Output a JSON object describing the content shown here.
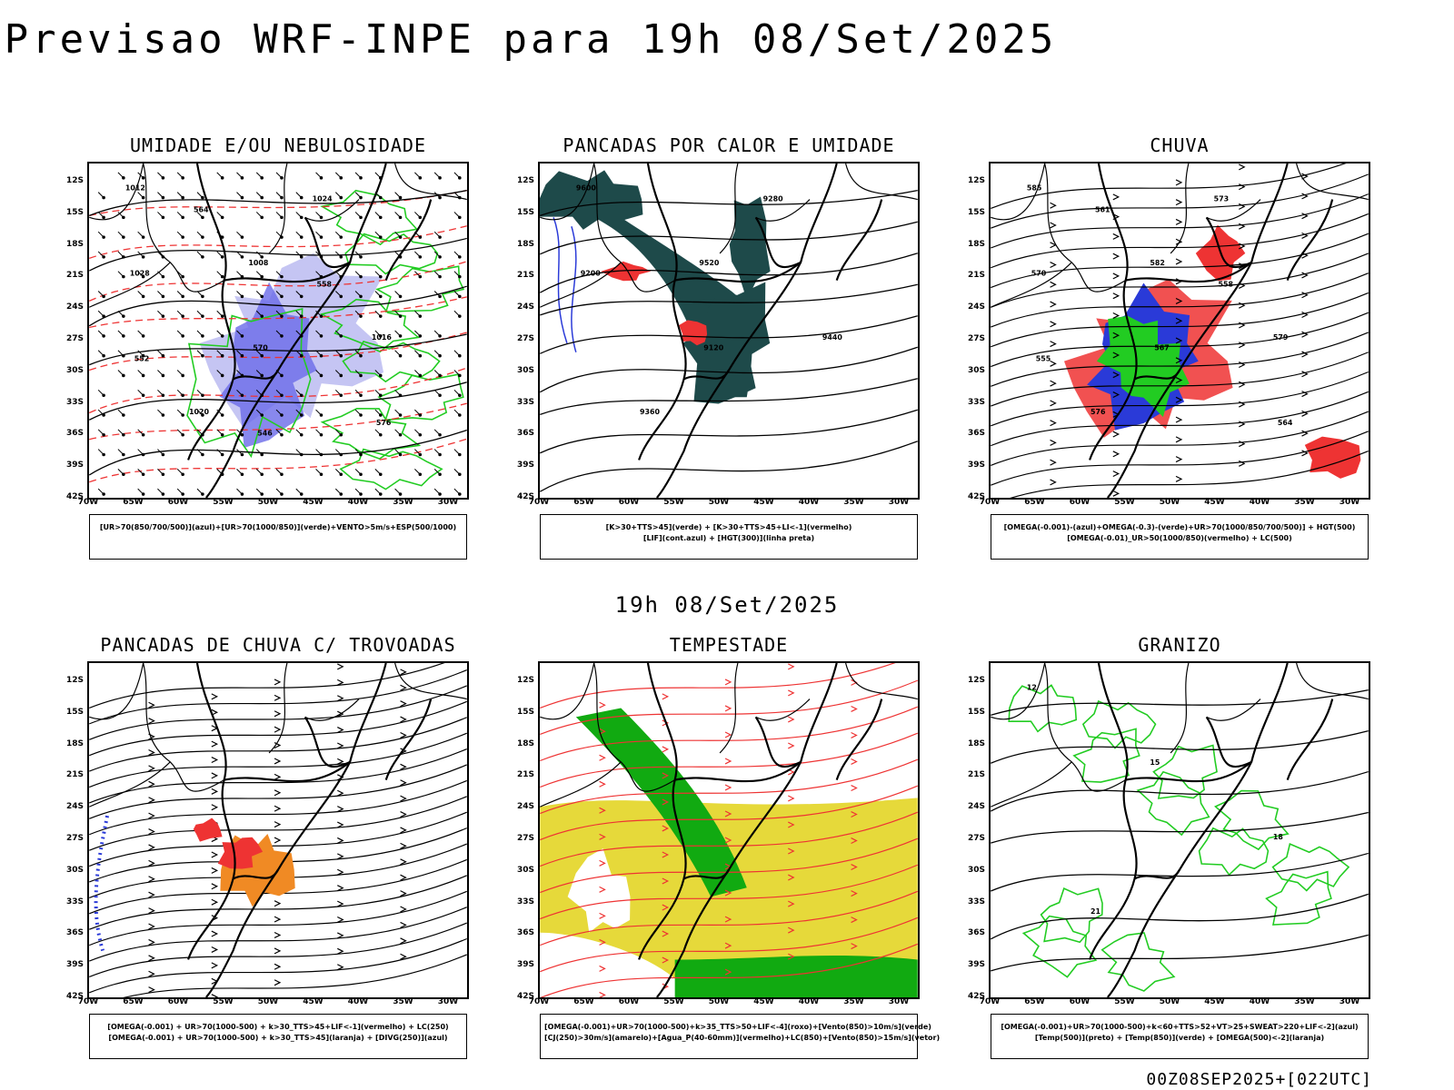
{
  "title": "Previsao WRF-INPE  para 19h 08/Set/2025",
  "mid_date": "19h 08/Set/2025",
  "footer_code": "00Z08SEP2025+[022UTC]",
  "lat_labels": [
    "12S",
    "15S",
    "18S",
    "21S",
    "24S",
    "27S",
    "30S",
    "33S",
    "36S",
    "39S",
    "42S"
  ],
  "lon_labels": [
    "70W",
    "65W",
    "60W",
    "55W",
    "50W",
    "45W",
    "40W",
    "35W",
    "30W"
  ],
  "panels": [
    {
      "title": "UMIDADE E/OU NEBULOSIDADE",
      "legend": [
        "[UR>70(850/700/500)](azul)+[UR>70(1000/850)](verde)+VENTO>5m/s+ESP(500/1000)"
      ],
      "contour_labels": [
        "1012",
        "1008",
        "1016",
        "1020",
        "1024",
        "1028",
        "570",
        "576",
        "564",
        "558",
        "552",
        "546"
      ]
    },
    {
      "title": "PANCADAS POR CALOR E UMIDADE",
      "legend": [
        "[K>30+TTS>45](verde) + [K>30+TTS>45+LI<-1](vermelho)",
        "[LIF](cont.azul) + [HGT(300)](linha preta)"
      ],
      "contour_labels": [
        "9600",
        "9520",
        "9440",
        "9360",
        "9280",
        "9200",
        "9120"
      ]
    },
    {
      "title": "CHUVA",
      "legend": [
        "[OMEGA(-0.001)-(azul)+OMEGA(-0.3)-(verde)+UR>70(1000/850/700/500)] + HGT(500)",
        "[OMEGA(-0.01)_UR>50(1000/850)(vermelho) + LC(500)"
      ],
      "contour_labels": [
        "585",
        "582",
        "579",
        "576",
        "573",
        "570",
        "567",
        "564",
        "561",
        "558",
        "555"
      ]
    },
    {
      "title": "PANCADAS DE CHUVA C/ TROVOADAS",
      "legend": [
        "[OMEGA(-0.001) + UR>70(1000-500) + k>30_TTS>45+LIF<-1](vermelho) + LC(250)",
        "[OMEGA(-0.001) + UR>70(1000-500) + k>30_TTS>45](laranja) + [DIVG(250)](azul)"
      ],
      "contour_labels": []
    },
    {
      "title": "TEMPESTADE",
      "legend": [
        "[OMEGA(-0.001)+UR>70(1000-500)+k>35_TTS>50+LIF<-4](roxo)+[Vento(850)>10m/s](verde)",
        "[CJ(250)>30m/s](amarelo)+[Agua_P(40-60mm)](vermelho)+LC(850)+[Vento(850)>15m/s](vetor)"
      ],
      "contour_labels": []
    },
    {
      "title": "GRANIZO",
      "legend": [
        "[OMEGA(-0.001)+UR>70(1000-500)+k<60+TTS>52+VT>25+SWEAT>220+LIF<-2](azul)",
        "[Temp(500)](preto) + [Temp(850)](verde) + [OMEGA(500)<-2](laranja)"
      ],
      "contour_labels": [
        "12",
        "15",
        "18",
        "21"
      ]
    }
  ],
  "colors": {
    "blue_fill": "#6a6ae8",
    "light_blue": "#b7b7f0",
    "green": "#22cc22",
    "red": "#ee3333",
    "dark_teal": "#1e4a4a",
    "orange": "#f08a24",
    "yellow": "#e6d93a",
    "dark_green": "#11aa11"
  }
}
